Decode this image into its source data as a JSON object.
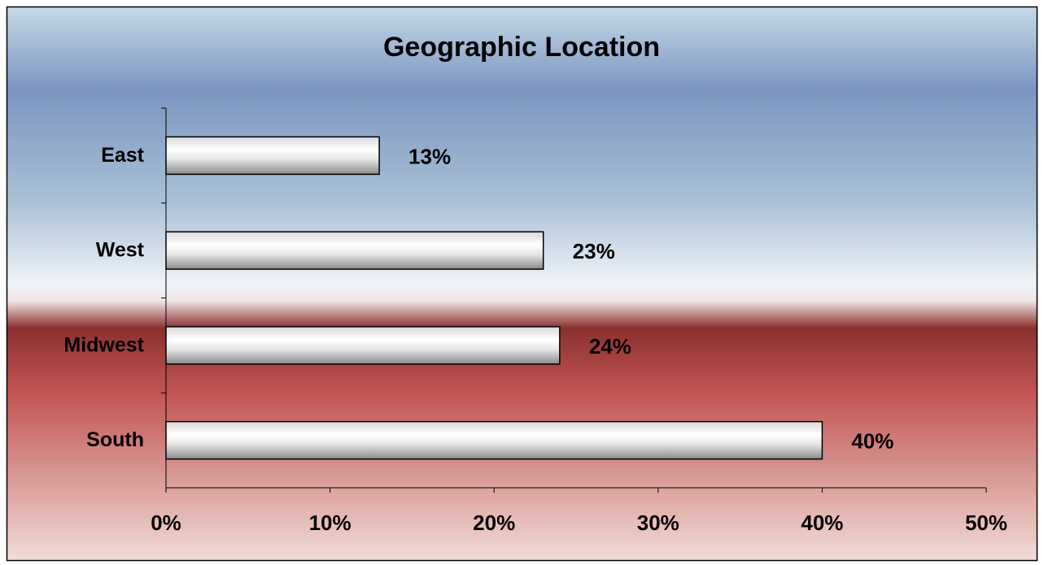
{
  "chart_data": {
    "type": "bar",
    "orientation": "horizontal",
    "title": "Geographic Location",
    "categories": [
      "East",
      "West",
      "Midwest",
      "South"
    ],
    "values": [
      13,
      23,
      24,
      40
    ],
    "value_labels": [
      "13%",
      "23%",
      "24%",
      "40%"
    ],
    "xlim": [
      0,
      50
    ],
    "xticks": [
      {
        "value": 0,
        "label": "0%"
      },
      {
        "value": 10,
        "label": "10%"
      },
      {
        "value": 20,
        "label": "20%"
      },
      {
        "value": 30,
        "label": "30%"
      },
      {
        "value": 40,
        "label": "40%"
      },
      {
        "value": 50,
        "label": "50%"
      }
    ],
    "grid": false
  }
}
